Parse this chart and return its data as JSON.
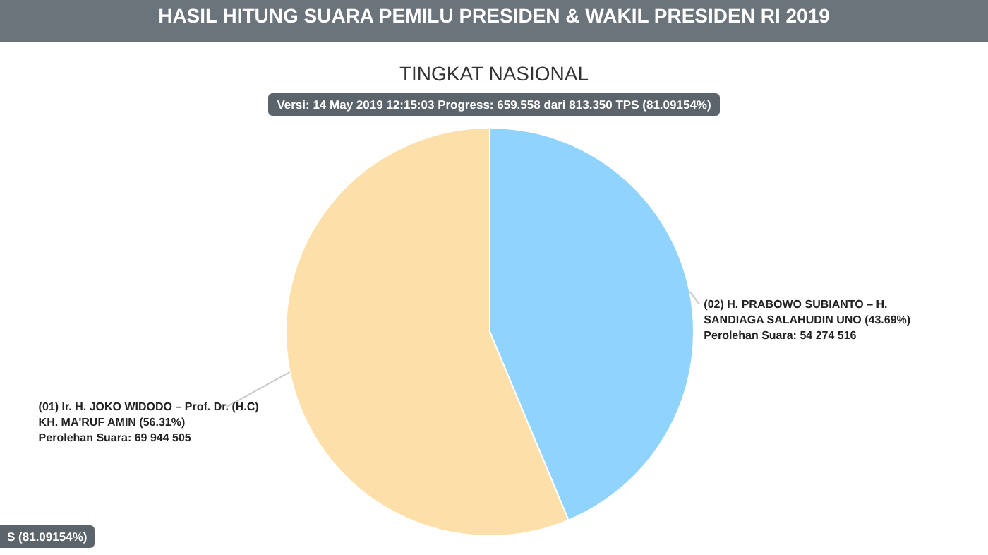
{
  "chart_data": {
    "type": "pie",
    "title": "HASIL HITUNG SUARA PEMILU PRESIDEN & WAKIL PRESIDEN RI 2019",
    "subtitle": "TINGKAT NASIONAL",
    "annotations": [
      "Versi: 14 May 2019 12:15:03 Progress: 659.558 dari 813.350 TPS (81.09154%)",
      "S (81.09154%)"
    ],
    "categories": [
      "(02) H. PRABOWO SUBIANTO – H. SANDIAGA SALAHUDIN UNO (43.69%)",
      "(01) Ir. H. JOKO WIDODO – Prof. Dr. (H.C) KH. MA'RUF AMIN (56.31%)"
    ],
    "values": [
      54274516,
      69944505
    ],
    "value_labels": [
      "Perolehan Suara: 54 274 516",
      "Perolehan Suara: 69 944 505"
    ],
    "colors": [
      "#90d4fd",
      "#fde0a9"
    ],
    "legend": false
  }
}
